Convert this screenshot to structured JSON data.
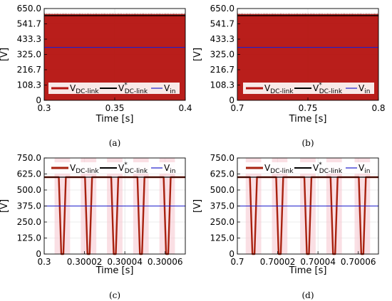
{
  "chart_data": [
    {
      "id": "a",
      "type": "line",
      "caption": "(a)",
      "xlabel": "Time [s]",
      "ylabel": "[V]",
      "xlim": [
        0.3,
        0.4
      ],
      "ylim": [
        0,
        650
      ],
      "xticks": [
        "0.3",
        "0.35",
        "0.4"
      ],
      "xtick_values": [
        0.3,
        0.35,
        0.4
      ],
      "yticks": [
        "0",
        "108.3",
        "216.7",
        "325.0",
        "433.3",
        "541.7",
        "650.0"
      ],
      "ytick_values": [
        0,
        108.3,
        216.7,
        325.0,
        433.3,
        541.7,
        650.0
      ],
      "grid": true,
      "legend_placement": "bottom",
      "fill": "dense-switching",
      "series": [
        {
          "name_main": "V",
          "name_sub": "DC-link",
          "name_sup": "",
          "color": "#b5120f",
          "values": [
            {
              "min": 0,
              "max": 610
            }
          ]
        },
        {
          "name_main": "V",
          "name_sub": "DC-link",
          "name_sup": "*",
          "color": "#000000",
          "values": [
            600
          ]
        },
        {
          "name_main": "V",
          "name_sub": "in",
          "name_sup": "",
          "color": "#1f1fcc",
          "values": [
            375
          ]
        }
      ]
    },
    {
      "id": "b",
      "type": "line",
      "caption": "(b)",
      "xlabel": "Time [s]",
      "ylabel": "[V]",
      "xlim": [
        0.7,
        0.8
      ],
      "ylim": [
        0,
        650
      ],
      "xticks": [
        "0.7",
        "0.75",
        "0.8"
      ],
      "xtick_values": [
        0.7,
        0.75,
        0.8
      ],
      "yticks": [
        "0",
        "108.3",
        "216.7",
        "325.0",
        "433.3",
        "541.7",
        "650.0"
      ],
      "ytick_values": [
        0,
        108.3,
        216.7,
        325.0,
        433.3,
        541.7,
        650.0
      ],
      "grid": true,
      "legend_placement": "bottom",
      "fill": "dense-switching",
      "series": [
        {
          "name_main": "V",
          "name_sub": "DC-link",
          "name_sup": "",
          "color": "#b5120f",
          "values": [
            {
              "min": 0,
              "max": 610
            }
          ]
        },
        {
          "name_main": "V",
          "name_sub": "DC-link",
          "name_sup": "*",
          "color": "#000000",
          "values": [
            600
          ]
        },
        {
          "name_main": "V",
          "name_sub": "in",
          "name_sup": "",
          "color": "#1f1fcc",
          "values": [
            375
          ]
        }
      ]
    },
    {
      "id": "c",
      "type": "line",
      "caption": "(c)",
      "xlabel": "Time [s]",
      "ylabel": "[V]",
      "xlim": [
        0.3,
        0.30007
      ],
      "ylim": [
        0,
        750
      ],
      "xticks": [
        "0.3",
        "0.30002",
        "0.30004",
        "0.30006"
      ],
      "xtick_values": [
        0.3,
        0.30002,
        0.30004,
        0.30006
      ],
      "yticks": [
        "0",
        "125.0",
        "250.0",
        "375.0",
        "500.0",
        "625.0",
        "750.0"
      ],
      "ytick_values": [
        0,
        125,
        250,
        375,
        500,
        625,
        750
      ],
      "grid": true,
      "legend_placement": "top",
      "fill": "pulses",
      "series": [
        {
          "name_main": "V",
          "name_sub": "DC-link",
          "name_sup": "",
          "color": "#a8210f",
          "pulse_centers": [
            0.300009,
            0.300022,
            0.300035,
            0.300048,
            0.300061
          ],
          "pulse_width": 3.5e-06,
          "high": 600,
          "low": 0
        },
        {
          "name_main": "V",
          "name_sub": "DC-link",
          "name_sup": "*",
          "color": "#000000",
          "values": [
            600
          ]
        },
        {
          "name_main": "V",
          "name_sub": "in",
          "name_sup": "",
          "color": "#1f1fcc",
          "values": [
            375
          ]
        }
      ]
    },
    {
      "id": "d",
      "type": "line",
      "caption": "(d)",
      "xlabel": "Time [s]",
      "ylabel": "[V]",
      "xlim": [
        0.7,
        0.70007
      ],
      "ylim": [
        0,
        750
      ],
      "xticks": [
        "0.7",
        "0.70002",
        "0.70004",
        "0.70006"
      ],
      "xtick_values": [
        0.7,
        0.70002,
        0.70004,
        0.70006
      ],
      "yticks": [
        "0",
        "125.0",
        "250.0",
        "375.0",
        "500.0",
        "625.0",
        "750.0"
      ],
      "ytick_values": [
        0,
        125,
        250,
        375,
        500,
        625,
        750
      ],
      "grid": true,
      "legend_placement": "top",
      "fill": "pulses",
      "series": [
        {
          "name_main": "V",
          "name_sub": "DC-link",
          "name_sup": "",
          "color": "#a8210f",
          "pulse_centers": [
            0.700008,
            0.700021,
            0.700035,
            0.700048,
            0.700062
          ],
          "pulse_width": 3.5e-06,
          "high": 600,
          "low": 0
        },
        {
          "name_main": "V",
          "name_sub": "DC-link",
          "name_sup": "*",
          "color": "#000000",
          "values": [
            600
          ]
        },
        {
          "name_main": "V",
          "name_sub": "in",
          "name_sup": "",
          "color": "#1f1fcc",
          "values": [
            375
          ]
        }
      ]
    }
  ]
}
